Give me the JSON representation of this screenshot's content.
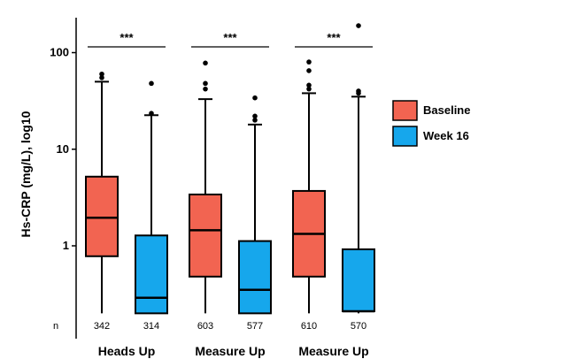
{
  "chart_data": {
    "type": "box",
    "ylabel": "Hs-CRP (mg/L), log10",
    "yscale": "log",
    "ylim": [
      0.15,
      230
    ],
    "yticks": [
      {
        "value": 1,
        "label": "1"
      },
      {
        "value": 10,
        "label": "10"
      },
      {
        "value": 100,
        "label": "100"
      }
    ],
    "n_row_label": "n",
    "groups": [
      {
        "label": "Heads Up",
        "significance": "***",
        "boxes": [
          {
            "series": "Baseline",
            "n": "342",
            "whisker_low": 0.2,
            "q1": 0.78,
            "median": 1.95,
            "q3": 5.2,
            "whisker_high": 50,
            "outliers": [
              55,
              60
            ]
          },
          {
            "series": "Week 16",
            "n": "314",
            "whisker_low": 0.2,
            "q1": 0.2,
            "median": 0.29,
            "q3": 1.28,
            "whisker_high": 22.5,
            "outliers": [
              23.5,
              48
            ]
          }
        ]
      },
      {
        "label": "Measure Up",
        "significance": "***",
        "boxes": [
          {
            "series": "Baseline",
            "n": "603",
            "whisker_low": 0.2,
            "q1": 0.48,
            "median": 1.45,
            "q3": 3.4,
            "whisker_high": 33,
            "outliers": [
              42,
              48,
              78
            ]
          },
          {
            "series": "Week 16",
            "n": "577",
            "whisker_low": 0.2,
            "q1": 0.2,
            "median": 0.35,
            "q3": 1.12,
            "whisker_high": 18,
            "outliers": [
              20,
              22,
              34
            ]
          }
        ]
      },
      {
        "label": "Measure Up",
        "significance": "***",
        "boxes": [
          {
            "series": "Baseline",
            "n": "610",
            "whisker_low": 0.2,
            "q1": 0.48,
            "median": 1.33,
            "q3": 3.7,
            "whisker_high": 38,
            "outliers": [
              42,
              46,
              65,
              80
            ]
          },
          {
            "series": "Week 16",
            "n": "570",
            "whisker_low": 0.2,
            "q1": 0.21,
            "median": 0.21,
            "q3": 0.92,
            "whisker_high": 35,
            "outliers": [
              38,
              40,
              190
            ]
          }
        ]
      }
    ],
    "legend": {
      "position": "right",
      "entries": [
        {
          "name": "Baseline",
          "color": "#f26451"
        },
        {
          "name": "Week 16",
          "color": "#16a7ec"
        }
      ]
    },
    "grid": false
  }
}
